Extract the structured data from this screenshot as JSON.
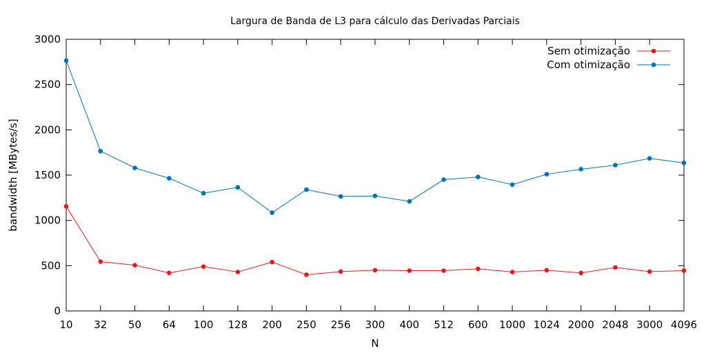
{
  "chart_data": {
    "type": "line",
    "title": "Largura de Banda de L3 para cálculo das Derivadas Parciais",
    "xlabel": "N",
    "ylabel": "bandwidth [MBytes/s]",
    "categories": [
      "10",
      "32",
      "50",
      "64",
      "100",
      "128",
      "200",
      "250",
      "256",
      "300",
      "400",
      "512",
      "600",
      "1000",
      "1024",
      "2000",
      "2048",
      "3000",
      "4096"
    ],
    "ylim": [
      0,
      3000
    ],
    "yticks": [
      0,
      500,
      1000,
      1500,
      2000,
      2500,
      3000
    ],
    "grid": false,
    "legend_position": "top-right",
    "series": [
      {
        "name": "Sem otimização",
        "color": "#e41a1c",
        "values": [
          1155,
          545,
          505,
          420,
          490,
          430,
          540,
          400,
          435,
          450,
          445,
          445,
          465,
          430,
          450,
          420,
          480,
          435,
          445
        ]
      },
      {
        "name": "Com otimização",
        "color": "#0072b2",
        "values": [
          2765,
          1765,
          1580,
          1465,
          1300,
          1365,
          1085,
          1340,
          1265,
          1270,
          1210,
          1450,
          1480,
          1395,
          1510,
          1565,
          1610,
          1685,
          1635
        ]
      }
    ]
  }
}
